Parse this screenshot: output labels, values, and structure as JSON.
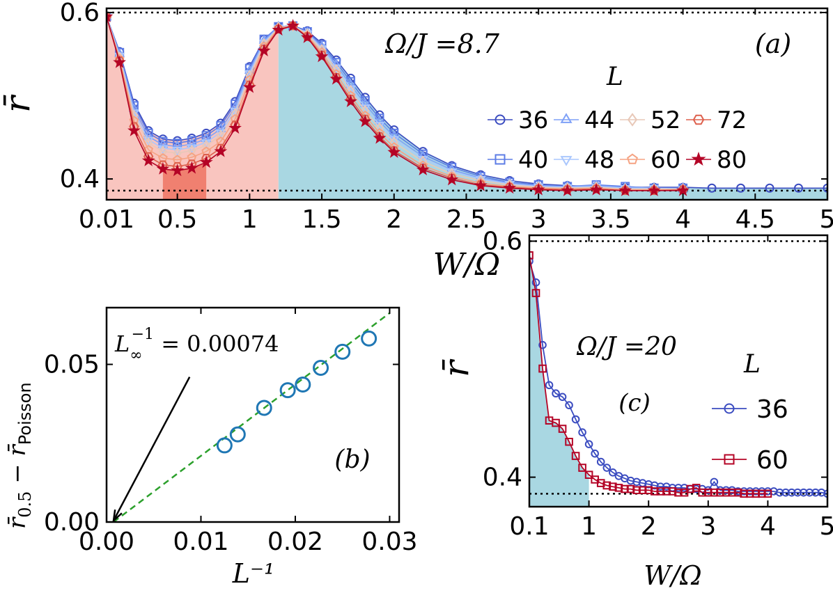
{
  "chart_data": [
    {
      "panel": "a",
      "type": "line",
      "panel_label": "(a)",
      "title": "Ω/J =8.7",
      "xlabel": "W/Ω",
      "ylabel": "r̄",
      "xlim": [
        0.01,
        5.0
      ],
      "ylim": [
        0.375,
        0.605
      ],
      "xticks": [
        0.01,
        0.5,
        1,
        1.5,
        2,
        2.5,
        3,
        3.5,
        4,
        4.5,
        5
      ],
      "xtick_labels": [
        "0.01",
        "0.5",
        "1",
        "1.5",
        "2",
        "2.5",
        "3",
        "3.5",
        "4",
        "4.5",
        "5"
      ],
      "yticks": [
        0.4,
        0.6
      ],
      "ytick_labels": [
        "0.4",
        "0.6"
      ],
      "reference_lines": [
        0.6,
        0.386
      ],
      "shaded_regions": [
        {
          "x": [
            0.01,
            1.2
          ],
          "color": "#f9c5bf"
        },
        {
          "x": [
            0.4,
            0.7
          ],
          "color": "#f08070"
        },
        {
          "x": [
            1.2,
            5.0
          ],
          "color": "#a9d7e2"
        }
      ],
      "legend_title": "L",
      "legend_position": "right",
      "series": [
        {
          "name": "36",
          "marker": "circle",
          "color": "#3b4cc0",
          "x": [
            0.01,
            0.1,
            0.2,
            0.3,
            0.4,
            0.5,
            0.6,
            0.7,
            0.8,
            0.9,
            1.0,
            1.1,
            1.2,
            1.3,
            1.4,
            1.5,
            1.6,
            1.7,
            1.8,
            1.9,
            2.0,
            2.2,
            2.4,
            2.6,
            2.8,
            3.0,
            3.2,
            3.4,
            3.6,
            3.8,
            4.0,
            4.2,
            4.4,
            4.6,
            4.8,
            5.0
          ],
          "values": [
            0.595,
            0.553,
            0.491,
            0.458,
            0.448,
            0.446,
            0.449,
            0.455,
            0.467,
            0.493,
            0.535,
            0.568,
            0.583,
            0.584,
            0.578,
            0.563,
            0.543,
            0.521,
            0.498,
            0.477,
            0.459,
            0.433,
            0.416,
            0.405,
            0.398,
            0.394,
            0.392,
            0.391,
            0.39,
            0.39,
            0.39,
            0.389,
            0.389,
            0.389,
            0.389,
            0.389
          ]
        },
        {
          "name": "40",
          "marker": "square",
          "color": "#5d7ce6",
          "x": [
            0.01,
            0.1,
            0.2,
            0.3,
            0.4,
            0.5,
            0.6,
            0.7,
            0.8,
            0.9,
            1.0,
            1.1,
            1.2,
            1.3,
            1.4,
            1.5,
            1.6,
            1.7,
            1.8,
            1.9,
            2.0,
            2.2,
            2.4,
            2.6,
            2.8,
            3.0,
            3.2,
            3.4,
            3.6,
            3.8,
            4.0
          ],
          "values": [
            0.595,
            0.552,
            0.488,
            0.455,
            0.445,
            0.443,
            0.446,
            0.452,
            0.464,
            0.49,
            0.533,
            0.568,
            0.583,
            0.584,
            0.577,
            0.561,
            0.54,
            0.517,
            0.494,
            0.473,
            0.455,
            0.43,
            0.414,
            0.403,
            0.396,
            0.393,
            0.391,
            0.393,
            0.391,
            0.389,
            0.389
          ]
        },
        {
          "name": "44",
          "marker": "triangle-up",
          "color": "#7fa1f7",
          "x": [
            0.01,
            0.1,
            0.2,
            0.3,
            0.4,
            0.5,
            0.6,
            0.7,
            0.8,
            0.9,
            1.0,
            1.1,
            1.2,
            1.3,
            1.4,
            1.5,
            1.6,
            1.7,
            1.8,
            1.9,
            2.0,
            2.2,
            2.4,
            2.6,
            2.8,
            3.0,
            3.2,
            3.4,
            3.6,
            3.8,
            4.0
          ],
          "values": [
            0.595,
            0.55,
            0.484,
            0.451,
            0.441,
            0.439,
            0.442,
            0.448,
            0.46,
            0.486,
            0.53,
            0.566,
            0.583,
            0.584,
            0.576,
            0.559,
            0.537,
            0.513,
            0.49,
            0.469,
            0.451,
            0.427,
            0.411,
            0.401,
            0.395,
            0.392,
            0.391,
            0.392,
            0.39,
            0.389,
            0.389
          ]
        },
        {
          "name": "48",
          "marker": "triangle-down",
          "color": "#aac7fd",
          "x": [
            0.01,
            0.1,
            0.2,
            0.3,
            0.4,
            0.5,
            0.6,
            0.7,
            0.8,
            0.9,
            1.0,
            1.1,
            1.2,
            1.3,
            1.4,
            1.5,
            1.6,
            1.7,
            1.8,
            1.9,
            2.0,
            2.2,
            2.4,
            2.6,
            2.8,
            3.0,
            3.2,
            3.4,
            3.6,
            3.8,
            4.0
          ],
          "values": [
            0.595,
            0.548,
            0.48,
            0.447,
            0.437,
            0.435,
            0.438,
            0.444,
            0.456,
            0.482,
            0.527,
            0.564,
            0.582,
            0.584,
            0.575,
            0.557,
            0.534,
            0.509,
            0.486,
            0.465,
            0.448,
            0.424,
            0.409,
            0.4,
            0.394,
            0.391,
            0.39,
            0.391,
            0.389,
            0.389,
            0.388
          ]
        },
        {
          "name": "52",
          "marker": "diamond",
          "color": "#e8c8b8",
          "x": [
            0.01,
            0.1,
            0.2,
            0.3,
            0.4,
            0.5,
            0.6,
            0.7,
            0.8,
            0.9,
            1.0,
            1.1,
            1.2,
            1.3,
            1.4,
            1.5,
            1.6,
            1.7,
            1.8,
            1.9,
            2.0,
            2.2,
            2.4,
            2.6,
            2.8,
            3.0,
            3.2,
            3.4,
            3.6,
            3.8,
            4.0
          ],
          "values": [
            0.595,
            0.546,
            0.476,
            0.443,
            0.433,
            0.431,
            0.434,
            0.44,
            0.452,
            0.478,
            0.524,
            0.562,
            0.582,
            0.584,
            0.574,
            0.555,
            0.531,
            0.506,
            0.482,
            0.461,
            0.444,
            0.421,
            0.406,
            0.398,
            0.393,
            0.39,
            0.389,
            0.39,
            0.388,
            0.388,
            0.388
          ]
        },
        {
          "name": "60",
          "marker": "pentagon",
          "color": "#f5a383",
          "x": [
            0.01,
            0.1,
            0.2,
            0.3,
            0.4,
            0.5,
            0.6,
            0.7,
            0.8,
            0.9,
            1.0,
            1.1,
            1.2,
            1.3,
            1.4,
            1.5,
            1.6,
            1.7,
            1.8,
            1.9,
            2.0,
            2.2,
            2.4,
            2.6,
            2.8,
            3.0,
            3.2,
            3.4,
            3.6,
            3.8,
            4.0
          ],
          "values": [
            0.595,
            0.544,
            0.47,
            0.435,
            0.425,
            0.423,
            0.426,
            0.433,
            0.445,
            0.472,
            0.519,
            0.559,
            0.581,
            0.584,
            0.572,
            0.552,
            0.526,
            0.5,
            0.476,
            0.455,
            0.438,
            0.416,
            0.403,
            0.395,
            0.391,
            0.389,
            0.388,
            0.389,
            0.387,
            0.387,
            0.387
          ]
        },
        {
          "name": "72",
          "marker": "hexagon",
          "color": "#de604d",
          "x": [
            0.01,
            0.1,
            0.2,
            0.3,
            0.4,
            0.5,
            0.6,
            0.7,
            0.8,
            0.9,
            1.0,
            1.1,
            1.2,
            1.3,
            1.4,
            1.5,
            1.6,
            1.7,
            1.8,
            1.9,
            2.0,
            2.2,
            2.4,
            2.6,
            2.8,
            3.0,
            3.2,
            3.4,
            3.6,
            3.8,
            4.0
          ],
          "values": [
            0.595,
            0.542,
            0.463,
            0.427,
            0.417,
            0.415,
            0.418,
            0.425,
            0.437,
            0.465,
            0.513,
            0.556,
            0.58,
            0.584,
            0.571,
            0.549,
            0.522,
            0.496,
            0.472,
            0.451,
            0.434,
            0.413,
            0.401,
            0.393,
            0.39,
            0.388,
            0.387,
            0.388,
            0.386,
            0.386,
            0.387
          ]
        },
        {
          "name": "80",
          "marker": "star",
          "color": "#b40426",
          "x": [
            0.01,
            0.1,
            0.2,
            0.3,
            0.4,
            0.5,
            0.6,
            0.7,
            0.8,
            0.9,
            1.0,
            1.1,
            1.2,
            1.3,
            1.4,
            1.5,
            1.6,
            1.7,
            1.8,
            1.9,
            2.0,
            2.2,
            2.4,
            2.6,
            2.8,
            3.0,
            3.2,
            3.4,
            3.6,
            3.8,
            4.0
          ],
          "values": [
            0.595,
            0.54,
            0.458,
            0.422,
            0.412,
            0.41,
            0.413,
            0.42,
            0.433,
            0.461,
            0.51,
            0.554,
            0.579,
            0.584,
            0.57,
            0.547,
            0.52,
            0.493,
            0.469,
            0.449,
            0.432,
            0.411,
            0.399,
            0.392,
            0.389,
            0.387,
            0.386,
            0.387,
            0.386,
            0.386,
            0.386
          ]
        }
      ]
    },
    {
      "panel": "b",
      "type": "scatter",
      "panel_label": "(b)",
      "xlabel": "L⁻¹",
      "ylabel": "r̄0.5 − r̄Poisson",
      "ylabel_main": "r̄",
      "ylabel_sub1": "0.5",
      "ylabel_mid": " − r̄",
      "ylabel_sub2": "Poisson",
      "xlim": [
        0.0,
        0.031
      ],
      "ylim": [
        0.0,
        0.068
      ],
      "xticks": [
        0.0,
        0.01,
        0.02,
        0.03
      ],
      "xtick_labels": [
        "0.00",
        "0.01",
        "0.02",
        "0.03"
      ],
      "yticks": [
        0.0,
        0.05
      ],
      "ytick_labels": [
        "0.00",
        "0.05"
      ],
      "annotation": "L∞⁻¹ = 0.00074",
      "annotation_base": "L",
      "annotation_sub": "∞",
      "annotation_sup": "−1",
      "annotation_rest": " = 0.00074",
      "arrow_target": [
        0.00074,
        0.0
      ],
      "arrow_tail": [
        0.0088,
        0.046
      ],
      "fit_line": {
        "x": [
          0.00074,
          0.03
        ],
        "values": [
          0.0,
          0.0663
        ],
        "color": "#2ca02c",
        "style": "dashed"
      },
      "marker_color": "#1f77b4",
      "x": [
        0.0125,
        0.0139,
        0.0167,
        0.0192,
        0.0208,
        0.0227,
        0.025,
        0.0278
      ],
      "values": [
        0.0243,
        0.0278,
        0.0362,
        0.0418,
        0.0436,
        0.0489,
        0.054,
        0.0582
      ]
    },
    {
      "panel": "c",
      "type": "line",
      "panel_label": "(c)",
      "title": "Ω/J =20",
      "xlabel": "W/Ω",
      "ylabel": "r̄",
      "xlim": [
        0.1,
        5.0
      ],
      "ylim": [
        0.375,
        0.605
      ],
      "xticks": [
        0.1,
        1,
        2,
        3,
        4,
        5
      ],
      "xtick_labels": [
        "0.1",
        "1",
        "2",
        "3",
        "4",
        "5"
      ],
      "yticks": [
        0.4,
        0.6
      ],
      "ytick_labels": [
        "0.4",
        "0.6"
      ],
      "reference_lines": [
        0.6,
        0.386
      ],
      "shaded_regions": [
        {
          "x": [
            0.1,
            1.0
          ],
          "color": "#a9d7e2",
          "follows_series": "60"
        }
      ],
      "legend_title": "L",
      "legend_position": "right",
      "series": [
        {
          "name": "36",
          "marker": "circle",
          "color": "#3b4cc0",
          "x": [
            0.1,
            0.2,
            0.3,
            0.4,
            0.5,
            0.6,
            0.7,
            0.8,
            0.9,
            1.0,
            1.1,
            1.2,
            1.3,
            1.4,
            1.5,
            1.6,
            1.7,
            1.8,
            1.9,
            2.0,
            2.1,
            2.2,
            2.3,
            2.4,
            2.5,
            2.6,
            2.7,
            2.8,
            2.9,
            3.0,
            3.1,
            3.2,
            3.3,
            3.4,
            3.5,
            3.6,
            3.7,
            3.8,
            3.9,
            4.0,
            4.1,
            4.2,
            4.3,
            4.4,
            4.5,
            4.6,
            4.7,
            4.8,
            4.9,
            5.0
          ],
          "values": [
            0.583,
            0.565,
            0.512,
            0.478,
            0.471,
            0.468,
            0.461,
            0.449,
            0.438,
            0.428,
            0.42,
            0.413,
            0.408,
            0.404,
            0.401,
            0.399,
            0.397,
            0.396,
            0.395,
            0.394,
            0.393,
            0.392,
            0.392,
            0.391,
            0.391,
            0.391,
            0.39,
            0.39,
            0.39,
            0.389,
            0.396,
            0.389,
            0.389,
            0.389,
            0.388,
            0.388,
            0.388,
            0.388,
            0.388,
            0.388,
            0.388,
            0.387,
            0.387,
            0.387,
            0.387,
            0.387,
            0.387,
            0.387,
            0.387,
            0.386
          ]
        },
        {
          "name": "60",
          "marker": "square",
          "color": "#b40426",
          "x": [
            0.1,
            0.2,
            0.3,
            0.4,
            0.5,
            0.6,
            0.7,
            0.8,
            0.9,
            1.0,
            1.1,
            1.2,
            1.3,
            1.4,
            1.5,
            1.6,
            1.7,
            1.8,
            1.9,
            2.0,
            2.1,
            2.2,
            2.3,
            2.4,
            2.5,
            2.6,
            2.7,
            2.8,
            2.9,
            3.0,
            3.1,
            3.2,
            3.3,
            3.4,
            3.5,
            3.6,
            3.7,
            3.8,
            3.9,
            4.0
          ],
          "values": [
            0.588,
            0.556,
            0.492,
            0.448,
            0.446,
            0.441,
            0.43,
            0.418,
            0.408,
            0.402,
            0.398,
            0.395,
            0.393,
            0.392,
            0.391,
            0.39,
            0.39,
            0.389,
            0.389,
            0.389,
            0.388,
            0.388,
            0.388,
            0.388,
            0.387,
            0.387,
            0.39,
            0.391,
            0.387,
            0.387,
            0.387,
            0.387,
            0.387,
            0.387,
            0.387,
            0.386,
            0.386,
            0.386,
            0.386,
            0.386
          ]
        }
      ]
    }
  ]
}
